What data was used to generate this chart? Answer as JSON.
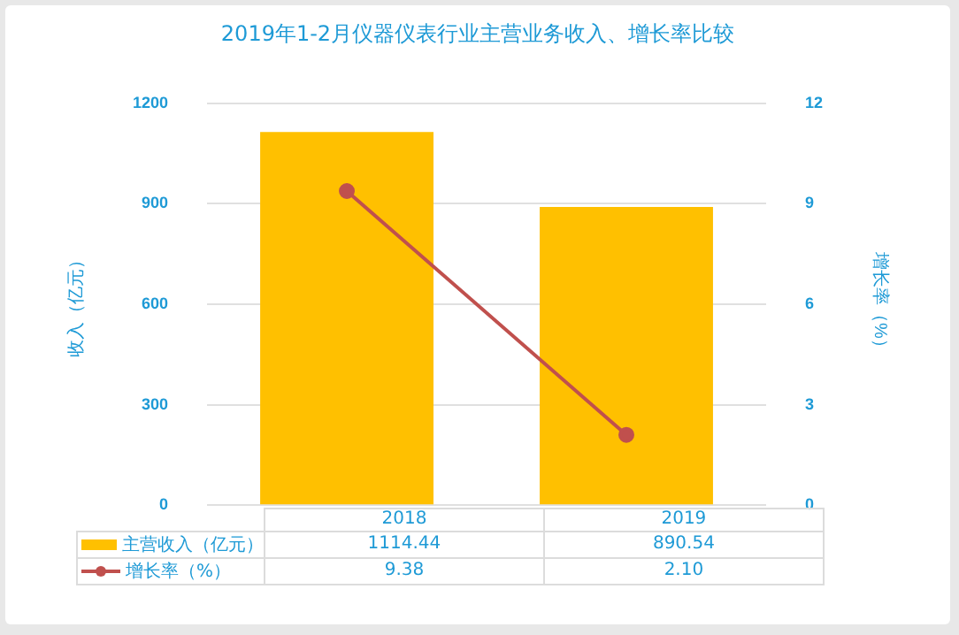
{
  "chart_data": {
    "type": "bar",
    "title": "2019年1-2月仪器仪表行业主营业务收入、增长率比较",
    "ylabel": "收入（亿元）",
    "y2label": "增长率（%）",
    "categories": [
      "2018",
      "2019"
    ],
    "series": [
      {
        "name": "主营收入（亿元）",
        "color": "#ffc000",
        "values": [
          1114.44,
          890.54
        ],
        "value_labels": [
          "1114.44",
          "890.54"
        ]
      },
      {
        "name": "增长率（%）",
        "type": "line",
        "axis": "y2",
        "color": "#c0504d",
        "values": [
          9.38,
          2.1
        ],
        "marker": "circle",
        "value_labels": [
          "9.38",
          "2.10"
        ]
      }
    ],
    "ylim": [
      0,
      1200
    ],
    "yticks": [
      0,
      300,
      600,
      900,
      1200
    ],
    "y2lim": [
      0,
      12
    ],
    "y2ticks": [
      0,
      3,
      6,
      9,
      12
    ],
    "grid": "y",
    "legend": "bottom"
  }
}
